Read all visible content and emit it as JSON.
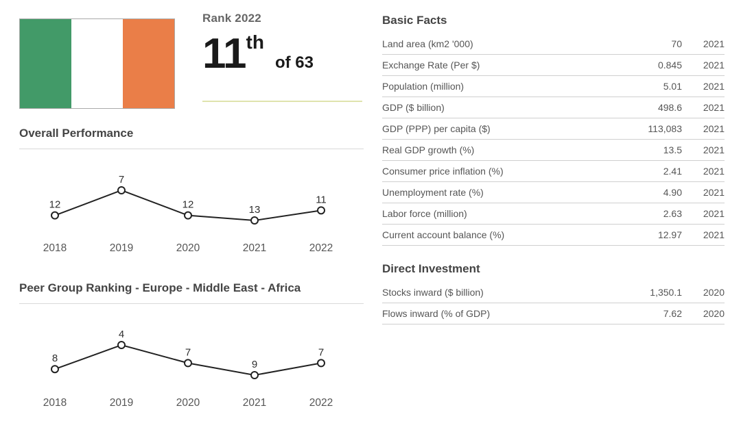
{
  "flag": {
    "country": "Ireland",
    "colors": {
      "green": "#429a68",
      "white": "#ffffff",
      "orange": "#ea7e48"
    },
    "border": "#a9a9a9"
  },
  "rank_panel": {
    "label": "Rank 2022",
    "rank_number": "11",
    "rank_ordinal": "th",
    "rank_of": "of 63",
    "underline_color": "#dfe3ad"
  },
  "chart_data": [
    {
      "type": "line",
      "title": "Overall Performance",
      "x": [
        "2018",
        "2019",
        "2020",
        "2021",
        "2022"
      ],
      "values": [
        12,
        7,
        12,
        13,
        11
      ],
      "point_labels": [
        "12",
        "7",
        "12",
        "13",
        "11"
      ],
      "line_color": "#222222",
      "marker": "open-circle",
      "layout": {
        "y_inverted": true,
        "gridlines": false,
        "y_axis_visible": false,
        "x_axis_labels_visible": true
      }
    },
    {
      "type": "line",
      "title": "Peer Group Ranking - Europe - Middle East - Africa",
      "x": [
        "2018",
        "2019",
        "2020",
        "2021",
        "2022"
      ],
      "values": [
        8,
        4,
        7,
        9,
        7
      ],
      "point_labels": [
        "8",
        "4",
        "7",
        "9",
        "7"
      ],
      "line_color": "#222222",
      "marker": "open-circle",
      "layout": {
        "y_inverted": true,
        "gridlines": false,
        "y_axis_visible": false,
        "x_axis_labels_visible": true
      }
    }
  ],
  "basic_facts": {
    "title": "Basic Facts",
    "rows": [
      {
        "label": "Land area (km2 '000)",
        "value": "70",
        "year": "2021"
      },
      {
        "label": "Exchange Rate (Per $)",
        "value": "0.845",
        "year": "2021"
      },
      {
        "label": "Population (million)",
        "value": "5.01",
        "year": "2021"
      },
      {
        "label": "GDP ($ billion)",
        "value": "498.6",
        "year": "2021"
      },
      {
        "label": "GDP (PPP) per capita ($)",
        "value": "113,083",
        "year": "2021"
      },
      {
        "label": "Real GDP growth (%)",
        "value": "13.5",
        "year": "2021"
      },
      {
        "label": "Consumer price inflation (%)",
        "value": "2.41",
        "year": "2021"
      },
      {
        "label": "Unemployment rate (%)",
        "value": "4.90",
        "year": "2021"
      },
      {
        "label": "Labor force (million)",
        "value": "2.63",
        "year": "2021"
      },
      {
        "label": "Current account balance (%)",
        "value": "12.97",
        "year": "2021"
      }
    ]
  },
  "direct_investment": {
    "title": "Direct Investment",
    "rows": [
      {
        "label": "Stocks inward ($ billion)",
        "value": "1,350.1",
        "year": "2020"
      },
      {
        "label": "Flows inward (% of GDP)",
        "value": "7.62",
        "year": "2020"
      }
    ]
  }
}
